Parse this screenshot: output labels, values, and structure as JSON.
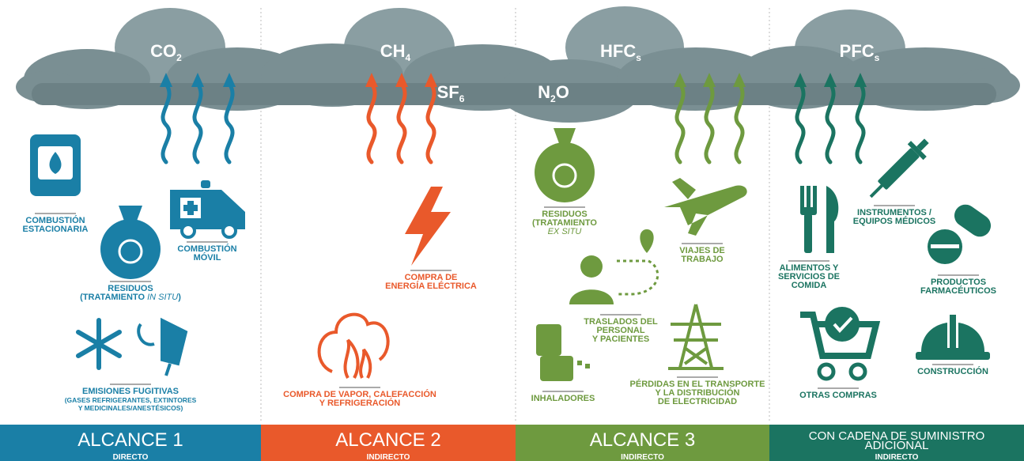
{
  "gases": [
    {
      "base": "CO",
      "sub": "2"
    },
    {
      "base": "CH",
      "sub": "4"
    },
    {
      "base": "SF",
      "sub": "6"
    },
    {
      "base": "HFC",
      "sub": "s"
    },
    {
      "base": "N",
      "sub": "2",
      "post": "O"
    },
    {
      "base": "PFC",
      "sub": "s"
    }
  ],
  "sections": [
    {
      "color": "#1a7fa6",
      "title_lines": [
        "ALCANCE 1"
      ],
      "subtitle": "DIRECTO",
      "items": [
        {
          "lines": [
            "COMBUSTIÓN",
            "ESTACIONARIA"
          ]
        },
        {
          "lines": [
            "RESIDUOS",
            {
              "pre": "(TRATAMIENTO ",
              "em": "IN SITU",
              "post": ")"
            }
          ]
        },
        {
          "lines": [
            "COMBUSTIÓN",
            "MÓVIL"
          ]
        },
        {
          "lines": [
            "EMISIONES FUGITIVAS"
          ],
          "note": [
            "(GASES REFRIGERANTES, EXTINTORES",
            "Y MEDICINALES/ANESTÉSICOS)"
          ]
        }
      ]
    },
    {
      "color": "#e9592b",
      "title_lines": [
        "ALCANCE 2"
      ],
      "subtitle": "INDIRECTO",
      "items": [
        {
          "lines": [
            "COMPRA DE",
            "ENERGÍA ELÉCTRICA"
          ]
        },
        {
          "lines": [
            "COMPRA DE VAPOR, CALEFACCIÓN",
            "Y REFRIGERACIÓN"
          ]
        }
      ]
    },
    {
      "color": "#6e9a3f",
      "title_lines": [
        "ALCANCE 3"
      ],
      "subtitle": "INDIRECTO",
      "items": [
        {
          "lines": [
            "RESIDUOS",
            "(TRATAMIENTO",
            {
              "em": "EX SITU"
            }
          ]
        },
        {
          "lines": [
            "VIAJES DE",
            "TRABAJO"
          ]
        },
        {
          "lines": [
            "TRASLADOS DEL",
            "PERSONAL",
            "Y PACIENTES"
          ]
        },
        {
          "lines": [
            "INHALADORES"
          ]
        },
        {
          "lines": [
            "PÉRDIDAS EN EL TRANSPORTE",
            "Y LA DISTRIBUCIÓN",
            "DE ELECTRICIDAD"
          ]
        }
      ]
    },
    {
      "color": "#1b7461",
      "title_lines": [
        "CON CADENA DE SUMINISTRO",
        "ADICIONAL"
      ],
      "subtitle": "INDIRECTO",
      "items": [
        {
          "lines": [
            "ALIMENTOS Y",
            "SERVICIOS DE",
            "COMIDA"
          ]
        },
        {
          "lines": [
            "INSTRUMENTOS /",
            "EQUIPOS MÉDICOS"
          ]
        },
        {
          "lines": [
            "PRODUCTOS",
            "FARMACÉUTICOS"
          ]
        },
        {
          "lines": [
            "OTRAS COMPRAS"
          ]
        },
        {
          "lines": [
            "CONSTRUCCIÓN"
          ]
        }
      ]
    }
  ]
}
